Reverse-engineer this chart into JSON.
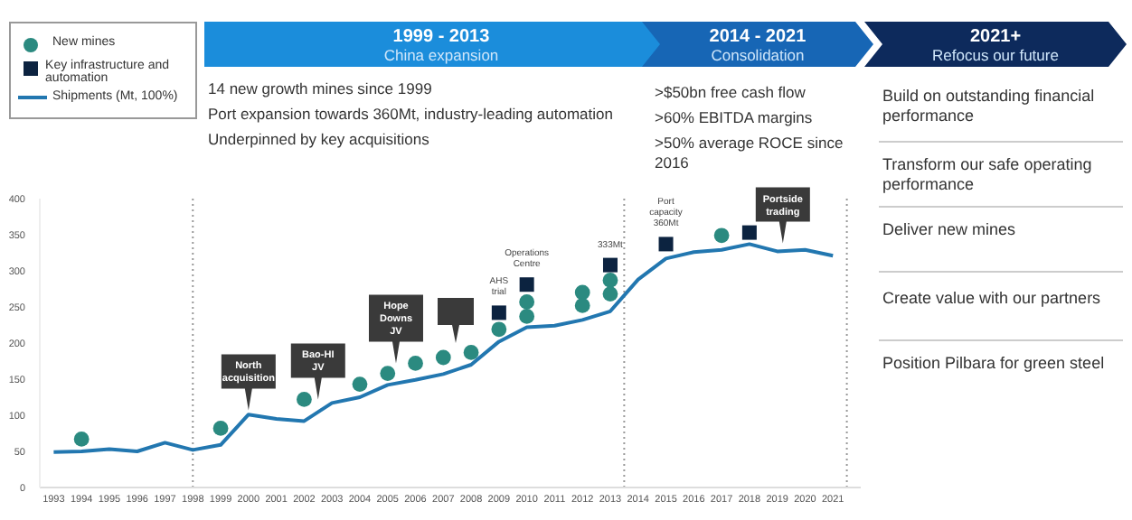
{
  "chart_data": {
    "type": "line",
    "x": [
      1993,
      1994,
      1995,
      1996,
      1997,
      1998,
      1999,
      2000,
      2001,
      2002,
      2003,
      2004,
      2005,
      2006,
      2007,
      2008,
      2009,
      2010,
      2011,
      2012,
      2013,
      2014,
      2015,
      2016,
      2017,
      2018,
      2019,
      2020,
      2021
    ],
    "xlim": [
      1992.5,
      2022
    ],
    "xticks": [
      1993,
      1994,
      1995,
      1996,
      1997,
      1998,
      1999,
      2000,
      2001,
      2002,
      2003,
      2004,
      2005,
      2006,
      2007,
      2008,
      2009,
      2010,
      2011,
      2012,
      2013,
      2014,
      2015,
      2016,
      2017,
      2018,
      2019,
      2020,
      2021
    ],
    "ylim": [
      0,
      400
    ],
    "yticks": [
      0,
      50,
      100,
      150,
      200,
      250,
      300,
      350,
      400
    ],
    "grid": false,
    "legend": "top left",
    "series": [
      {
        "name": "New mines",
        "type": "scatter",
        "marker": "circle",
        "color": "#2b8a80",
        "x": [
          1994,
          1999,
          2002,
          2004,
          2005,
          2006,
          2007,
          2008,
          2009,
          2010,
          2010,
          2012,
          2012,
          2013,
          2013,
          2017
        ],
        "values": [
          67,
          82,
          122,
          143,
          158,
          172,
          180,
          187,
          219,
          257,
          237,
          270,
          252,
          287,
          268,
          349
        ]
      },
      {
        "name": "Key infrastructure and automation",
        "type": "scatter",
        "marker": "square",
        "color": "#0c2340",
        "x": [
          2009,
          2010,
          2013,
          2015,
          2018
        ],
        "values": [
          242,
          281,
          308,
          337,
          353
        ]
      },
      {
        "name": "Shipments (Mt, 100%)",
        "color": "#2277b0",
        "values": [
          49,
          50,
          53,
          50,
          62,
          52,
          59,
          101,
          95,
          92,
          117,
          125,
          142,
          149,
          157,
          170,
          202,
          222,
          224,
          232,
          244,
          288,
          317,
          326,
          329,
          337,
          327,
          329,
          321
        ]
      }
    ],
    "ref_lines": [
      {
        "axis": "x",
        "value": 1998,
        "line_style": "dotted",
        "color": "#999999"
      },
      {
        "axis": "x",
        "value": 2013.5,
        "line_style": "dotted",
        "color": "#999999"
      },
      {
        "axis": "x",
        "value": 2021.5,
        "line_style": "dotted",
        "color": "#999999"
      }
    ],
    "annotations": [
      "1999 - 2013",
      "China expansion",
      "2014 - 2021",
      "Consolidation",
      "2021+",
      "Refocus our future",
      "14 new growth mines since 1999",
      "Port expansion towards 360Mt, industry-leading automation",
      "Underpinned by key acquisitions",
      ">$50bn free cash flow",
      ">60% EBITDA margins",
      ">50% average ROCE since 2016",
      "Build on outstanding financial performance",
      "Transform our safe operating performance",
      "Deliver new mines",
      "Create value with our partners",
      "Position Pilbara for green steel",
      {
        "text": "North acquisition",
        "x": 2000,
        "y": 107
      },
      {
        "text": "Bao-HI JV",
        "x": 2002.5,
        "y": 122
      },
      {
        "text": "Hope Downs JV",
        "x": 2005.3,
        "y": 172
      },
      {
        "text": "Portside trading",
        "x": 2019.2,
        "y": 338
      },
      {
        "text": "AHS trial",
        "x": 2009,
        "y": 252
      },
      {
        "text": "Operations Centre",
        "x": 2010,
        "y": 291
      },
      {
        "text": "333Mt",
        "x": 2013,
        "y": 318
      },
      {
        "text": "Port capacity 360Mt",
        "x": 2015,
        "y": 347
      }
    ]
  }
}
